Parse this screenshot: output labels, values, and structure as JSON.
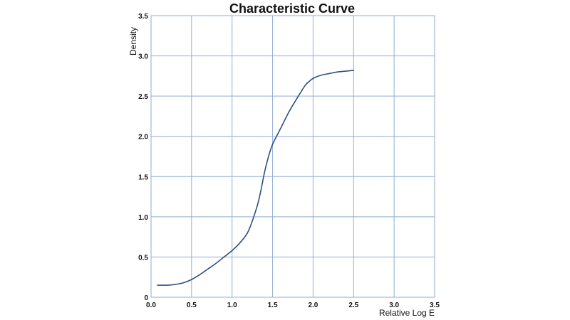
{
  "chart_data": {
    "type": "line",
    "title": "Characteristic Curve",
    "xlabel": "Relative Log E",
    "ylabel": "Density",
    "xlim": [
      0.0,
      3.5
    ],
    "ylim": [
      0,
      3.5
    ],
    "x_ticks": [
      "0.0",
      "0.5",
      "1.0",
      "1.5",
      "2.0",
      "2.5",
      "3.0",
      "3.5"
    ],
    "y_ticks": [
      "0",
      "0.5",
      "1.0",
      "1.5",
      "2.0",
      "2.5",
      "3.0",
      "3.5"
    ],
    "grid": true,
    "colors": {
      "series": "#2f4f80",
      "grid": "#8eaed6",
      "text": "#111111"
    },
    "series": [
      {
        "x": [
          0.08,
          0.2,
          0.3,
          0.4,
          0.5,
          0.6,
          0.7,
          0.8,
          0.9,
          1.0,
          1.1,
          1.2,
          1.3,
          1.35,
          1.4,
          1.45,
          1.5,
          1.6,
          1.7,
          1.8,
          1.9,
          1.95,
          2.0,
          2.1,
          2.2,
          2.3,
          2.4,
          2.5
        ],
        "y": [
          0.15,
          0.15,
          0.16,
          0.18,
          0.22,
          0.28,
          0.35,
          0.42,
          0.5,
          0.58,
          0.68,
          0.82,
          1.1,
          1.3,
          1.55,
          1.75,
          1.9,
          2.1,
          2.3,
          2.47,
          2.63,
          2.68,
          2.72,
          2.76,
          2.78,
          2.8,
          2.81,
          2.82
        ]
      }
    ]
  }
}
